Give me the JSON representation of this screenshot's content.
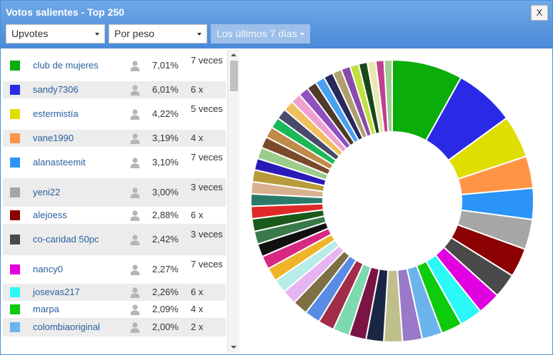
{
  "window": {
    "title": "Votos salientes - Top 250",
    "close_label": "X"
  },
  "filters": {
    "type": "Upvotes",
    "mode": "Por peso",
    "period": "Los últimos 7 días"
  },
  "voters": [
    {
      "name": "club de mujeres",
      "percent": "7,01%",
      "count": "7 veces",
      "color": "#0aad0a"
    },
    {
      "name": "sandy7306",
      "percent": "6,01%",
      "count": "6 x",
      "color": "#2a2ae6"
    },
    {
      "name": "estermistía",
      "percent": "4,22%",
      "count": "5 veces",
      "color": "#dede00"
    },
    {
      "name": "vane1990",
      "percent": "3,19%",
      "count": "4 x",
      "color": "#ff9447"
    },
    {
      "name": "alanasteemit",
      "percent": "3,10%",
      "count": "7 veces",
      "color": "#2b95f7"
    },
    {
      "name": "yeni22",
      "percent": "3,00%",
      "count": "3 veces",
      "color": "#a6a6a6"
    },
    {
      "name": "alejoess",
      "percent": "2,88%",
      "count": "6 x",
      "color": "#8b0000"
    },
    {
      "name": "co-caridad 50pc",
      "percent": "2,42%",
      "count": "3 veces",
      "color": "#4a4a4a"
    },
    {
      "name": "nancy0",
      "percent": "2,27%",
      "count": "7 veces",
      "color": "#e000e0"
    },
    {
      "name": "josevas217",
      "percent": "2,26%",
      "count": "6 x",
      "color": "#2cf8f8"
    },
    {
      "name": "marpa",
      "percent": "2,09%",
      "count": "4 x",
      "color": "#0ccc0c"
    },
    {
      "name": "colombiaoriginal",
      "percent": "2,00%",
      "count": "2 x",
      "color": "#6bb3ec"
    }
  ],
  "chart_data": {
    "type": "pie",
    "slices": [
      {
        "name": "club de mujeres",
        "value": 7.01,
        "color": "#0aad0a"
      },
      {
        "name": "sandy7306",
        "value": 6.01,
        "color": "#2a2ae6"
      },
      {
        "name": "estermistía",
        "value": 4.22,
        "color": "#dede00"
      },
      {
        "name": "vane1990",
        "value": 3.19,
        "color": "#ff9447"
      },
      {
        "name": "alanasteemit",
        "value": 3.1,
        "color": "#2b95f7"
      },
      {
        "name": "yeni22",
        "value": 3.0,
        "color": "#a6a6a6"
      },
      {
        "name": "alejoess",
        "value": 2.88,
        "color": "#8b0000"
      },
      {
        "name": "co-caridad 50pc",
        "value": 2.42,
        "color": "#4a4a4a"
      },
      {
        "name": "nancy0",
        "value": 2.27,
        "color": "#e000e0"
      },
      {
        "name": "josevas217",
        "value": 2.26,
        "color": "#2cf8f8"
      },
      {
        "name": "marpa",
        "value": 2.09,
        "color": "#0ccc0c"
      },
      {
        "name": "colombiaoriginal",
        "value": 2.0,
        "color": "#6bb3ec"
      },
      {
        "value": 1.95,
        "color": "#9a7ac8"
      },
      {
        "value": 1.85,
        "color": "#bfbf8c"
      },
      {
        "value": 1.75,
        "color": "#1a2744"
      },
      {
        "value": 1.7,
        "color": "#7a1444"
      },
      {
        "value": 1.65,
        "color": "#7ed8b0"
      },
      {
        "value": 1.6,
        "color": "#a02c4a"
      },
      {
        "value": 1.55,
        "color": "#5a8ce6"
      },
      {
        "value": 1.5,
        "color": "#7e7044"
      },
      {
        "value": 1.45,
        "color": "#e6b4f0"
      },
      {
        "value": 1.4,
        "color": "#b8ece6"
      },
      {
        "value": 1.35,
        "color": "#f0b428"
      },
      {
        "value": 1.32,
        "color": "#d82882"
      },
      {
        "value": 1.3,
        "color": "#101010"
      },
      {
        "value": 1.28,
        "color": "#3a7a4a"
      },
      {
        "value": 1.26,
        "color": "#1a5a1a"
      },
      {
        "value": 1.24,
        "color": "#e02828"
      },
      {
        "value": 1.22,
        "color": "#2a7a6a"
      },
      {
        "value": 1.2,
        "color": "#d8b090"
      },
      {
        "value": 1.18,
        "color": "#b89c3a"
      },
      {
        "value": 1.16,
        "color": "#2c1ab8"
      },
      {
        "value": 1.14,
        "color": "#9ccc8c"
      },
      {
        "value": 1.12,
        "color": "#7a4a2a"
      },
      {
        "value": 1.1,
        "color": "#c08a4a"
      },
      {
        "value": 1.08,
        "color": "#1ab858"
      },
      {
        "value": 1.06,
        "color": "#4a4a6a"
      },
      {
        "value": 1.04,
        "color": "#f0c060"
      },
      {
        "value": 1.02,
        "color": "#f0a0d0"
      },
      {
        "value": 1.0,
        "color": "#9050c0"
      },
      {
        "value": 0.98,
        "color": "#503a2a"
      },
      {
        "value": 0.96,
        "color": "#4aa0f0"
      },
      {
        "value": 0.94,
        "color": "#28285a"
      },
      {
        "value": 0.92,
        "color": "#b0a070"
      },
      {
        "value": 0.9,
        "color": "#8a4aaa"
      },
      {
        "value": 0.88,
        "color": "#c0e040"
      },
      {
        "value": 0.86,
        "color": "#184818"
      },
      {
        "value": 0.84,
        "color": "#e8e8b0"
      },
      {
        "value": 0.82,
        "color": "#c04090"
      },
      {
        "value": 0.8,
        "color": "#a0d090"
      }
    ]
  }
}
